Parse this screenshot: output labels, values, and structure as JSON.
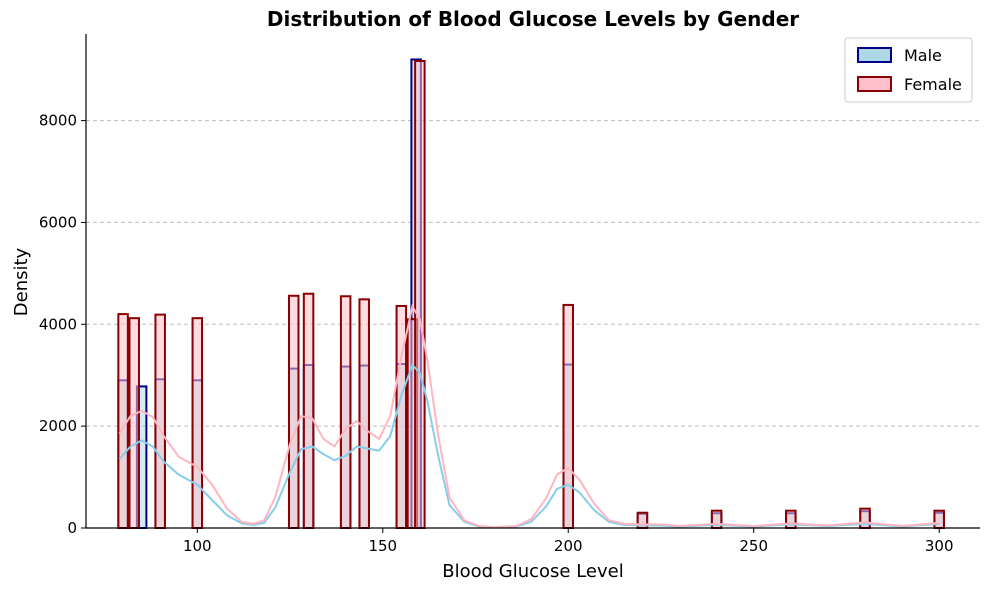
{
  "chart_data": {
    "type": "bar",
    "title": "Distribution of Blood Glucose Levels by Gender",
    "xlabel": "Blood Glucose Level",
    "ylabel": "Density",
    "xlim": [
      70,
      311
    ],
    "ylim": [
      0,
      9700
    ],
    "x_ticks": [
      100,
      150,
      200,
      250,
      300
    ],
    "y_ticks": [
      0,
      2000,
      4000,
      6000,
      8000
    ],
    "grid": "y-dashed",
    "legend_position": "top-right",
    "series": [
      {
        "name": "Male",
        "fill_color": "#add8e6",
        "edge_color": "#00008b",
        "kde_color": "#87ceeb",
        "bars": [
          {
            "x": 80,
            "y": 2900
          },
          {
            "x": 85,
            "y": 2780
          },
          {
            "x": 90,
            "y": 2920
          },
          {
            "x": 100,
            "y": 2900
          },
          {
            "x": 126,
            "y": 3130
          },
          {
            "x": 130,
            "y": 3200
          },
          {
            "x": 140,
            "y": 3170
          },
          {
            "x": 145,
            "y": 3190
          },
          {
            "x": 155,
            "y": 3220
          },
          {
            "x": 159,
            "y": 9200
          },
          {
            "x": 200,
            "y": 3210
          },
          {
            "x": 220,
            "y": 280
          },
          {
            "x": 240,
            "y": 290
          },
          {
            "x": 260,
            "y": 290
          },
          {
            "x": 280,
            "y": 330
          },
          {
            "x": 300,
            "y": 300
          }
        ],
        "kde": [
          [
            79,
            1350
          ],
          [
            82,
            1600
          ],
          [
            85,
            1720
          ],
          [
            88,
            1600
          ],
          [
            91,
            1300
          ],
          [
            95,
            1050
          ],
          [
            100,
            850
          ],
          [
            104,
            550
          ],
          [
            108,
            250
          ],
          [
            112,
            90
          ],
          [
            115,
            60
          ],
          [
            118,
            100
          ],
          [
            121,
            400
          ],
          [
            125,
            1100
          ],
          [
            128,
            1550
          ],
          [
            131,
            1600
          ],
          [
            134,
            1450
          ],
          [
            137,
            1330
          ],
          [
            140,
            1420
          ],
          [
            143,
            1600
          ],
          [
            146,
            1560
          ],
          [
            149,
            1520
          ],
          [
            152,
            1800
          ],
          [
            155,
            2600
          ],
          [
            158,
            3200
          ],
          [
            160,
            3050
          ],
          [
            162,
            2500
          ],
          [
            165,
            1400
          ],
          [
            168,
            450
          ],
          [
            172,
            120
          ],
          [
            176,
            30
          ],
          [
            180,
            10
          ],
          [
            186,
            30
          ],
          [
            190,
            120
          ],
          [
            194,
            420
          ],
          [
            197,
            770
          ],
          [
            200,
            850
          ],
          [
            203,
            700
          ],
          [
            207,
            350
          ],
          [
            211,
            120
          ],
          [
            215,
            60
          ],
          [
            220,
            50
          ],
          [
            225,
            50
          ],
          [
            230,
            30
          ],
          [
            240,
            60
          ],
          [
            250,
            30
          ],
          [
            260,
            70
          ],
          [
            270,
            40
          ],
          [
            280,
            80
          ],
          [
            290,
            30
          ],
          [
            300,
            80
          ]
        ]
      },
      {
        "name": "Female",
        "fill_color": "#ffc0cb",
        "edge_color": "#8b0000",
        "kde_color": "#ffb6c1",
        "bars": [
          {
            "x": 80,
            "y": 4200
          },
          {
            "x": 83,
            "y": 4120
          },
          {
            "x": 90,
            "y": 4190
          },
          {
            "x": 100,
            "y": 4120
          },
          {
            "x": 126,
            "y": 4560
          },
          {
            "x": 130,
            "y": 4600
          },
          {
            "x": 140,
            "y": 4550
          },
          {
            "x": 145,
            "y": 4490
          },
          {
            "x": 155,
            "y": 4360
          },
          {
            "x": 158,
            "y": 4100
          },
          {
            "x": 160,
            "y": 9170
          },
          {
            "x": 200,
            "y": 4380
          },
          {
            "x": 220,
            "y": 300
          },
          {
            "x": 240,
            "y": 340
          },
          {
            "x": 260,
            "y": 340
          },
          {
            "x": 280,
            "y": 380
          },
          {
            "x": 300,
            "y": 340
          }
        ],
        "kde": [
          [
            79,
            1850
          ],
          [
            82,
            2200
          ],
          [
            85,
            2300
          ],
          [
            88,
            2180
          ],
          [
            91,
            1800
          ],
          [
            95,
            1400
          ],
          [
            100,
            1200
          ],
          [
            104,
            850
          ],
          [
            108,
            380
          ],
          [
            112,
            120
          ],
          [
            115,
            80
          ],
          [
            118,
            150
          ],
          [
            121,
            600
          ],
          [
            125,
            1650
          ],
          [
            128,
            2200
          ],
          [
            131,
            2150
          ],
          [
            134,
            1750
          ],
          [
            137,
            1600
          ],
          [
            140,
            1950
          ],
          [
            143,
            2100
          ],
          [
            146,
            1900
          ],
          [
            149,
            1750
          ],
          [
            152,
            2200
          ],
          [
            155,
            3350
          ],
          [
            158,
            4350
          ],
          [
            160,
            4100
          ],
          [
            162,
            3300
          ],
          [
            165,
            1800
          ],
          [
            168,
            600
          ],
          [
            172,
            150
          ],
          [
            176,
            40
          ],
          [
            180,
            15
          ],
          [
            186,
            40
          ],
          [
            190,
            170
          ],
          [
            194,
            580
          ],
          [
            197,
            1050
          ],
          [
            200,
            1180
          ],
          [
            203,
            950
          ],
          [
            207,
            480
          ],
          [
            211,
            150
          ],
          [
            215,
            80
          ],
          [
            220,
            70
          ],
          [
            225,
            70
          ],
          [
            230,
            40
          ],
          [
            240,
            80
          ],
          [
            250,
            40
          ],
          [
            260,
            90
          ],
          [
            270,
            50
          ],
          [
            280,
            110
          ],
          [
            290,
            40
          ],
          [
            300,
            100
          ]
        ]
      }
    ]
  }
}
